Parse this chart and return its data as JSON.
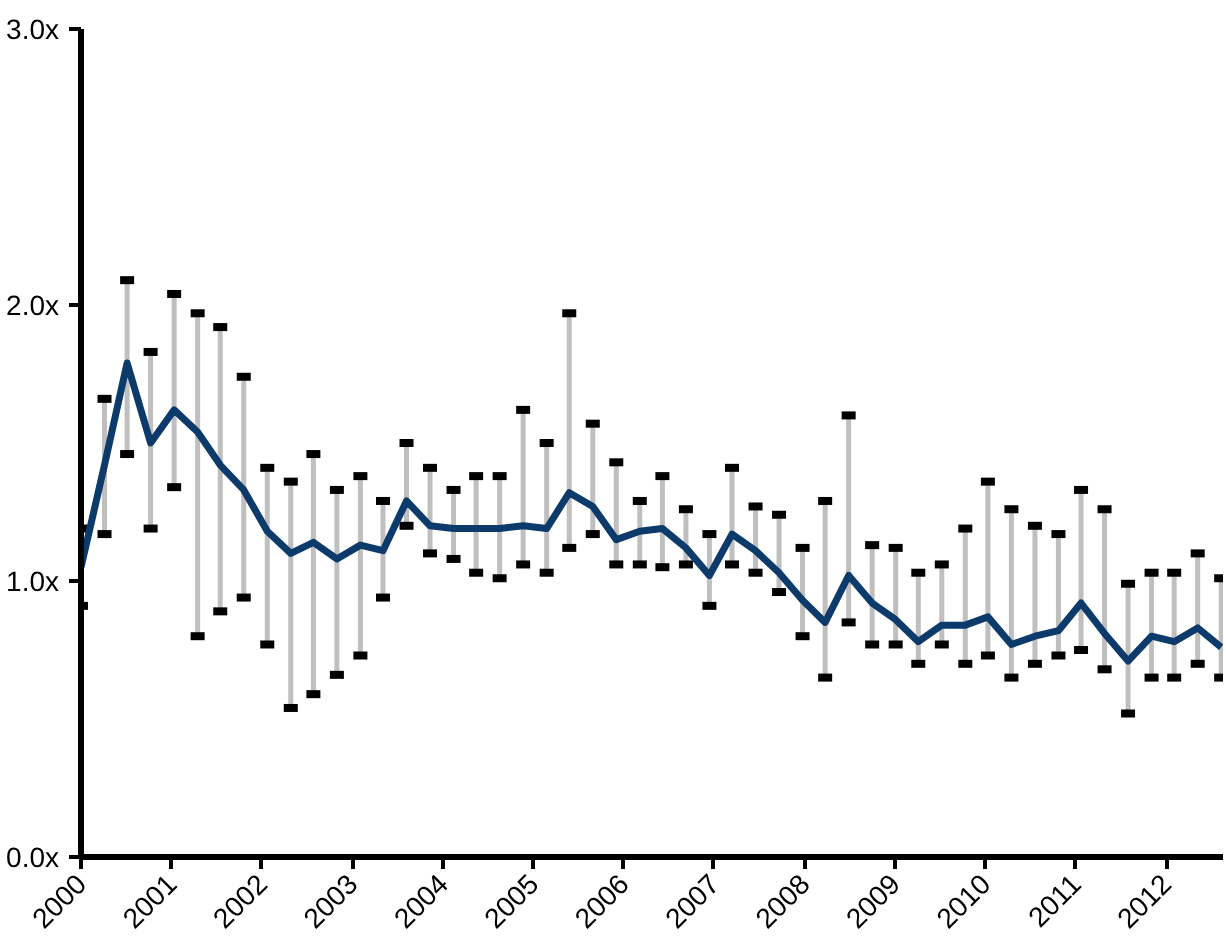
{
  "chart_data": {
    "type": "line",
    "x": [
      2000,
      2000.26,
      2000.51,
      2000.77,
      2001.03,
      2001.29,
      2001.54,
      2001.8,
      2002.06,
      2002.32,
      2002.57,
      2002.83,
      2003.09,
      2003.34,
      2003.6,
      2003.86,
      2004.12,
      2004.37,
      2004.63,
      2004.89,
      2005.15,
      2005.4,
      2005.66,
      2005.92,
      2006.18,
      2006.43,
      2006.69,
      2006.95,
      2007.2,
      2007.46,
      2007.72,
      2007.98,
      2008.23,
      2008.49,
      2008.75,
      2009.01,
      2009.26,
      2009.52,
      2009.78,
      2010.03,
      2010.29,
      2010.55,
      2010.81,
      2011.06,
      2011.32,
      2011.58,
      2011.84,
      2012.09,
      2012.35,
      2012.61
    ],
    "series": [
      {
        "color": "#0b3a6b",
        "values": [
          1.05,
          1.42,
          1.79,
          1.5,
          1.62,
          1.54,
          1.42,
          1.33,
          1.18,
          1.1,
          1.14,
          1.08,
          1.13,
          1.11,
          1.29,
          1.2,
          1.19,
          1.19,
          1.19,
          1.2,
          1.19,
          1.32,
          1.27,
          1.15,
          1.18,
          1.19,
          1.12,
          1.02,
          1.17,
          1.11,
          1.03,
          0.93,
          0.85,
          1.02,
          0.92,
          0.86,
          0.78,
          0.84,
          0.84,
          0.87,
          0.77,
          0.8,
          0.82,
          0.92,
          0.81,
          0.71,
          0.8,
          0.78,
          0.83,
          0.76
        ],
        "errors": [
          [
            0.91,
            1.19
          ],
          [
            1.17,
            1.66
          ],
          [
            1.46,
            2.09
          ],
          [
            1.19,
            1.83
          ],
          [
            1.34,
            2.04
          ],
          [
            0.8,
            1.97
          ],
          [
            0.89,
            1.92
          ],
          [
            0.94,
            1.74
          ],
          [
            0.77,
            1.41
          ],
          [
            0.54,
            1.36
          ],
          [
            0.59,
            1.46
          ],
          [
            0.66,
            1.33
          ],
          [
            0.73,
            1.38
          ],
          [
            0.94,
            1.29
          ],
          [
            1.2,
            1.5
          ],
          [
            1.1,
            1.41
          ],
          [
            1.08,
            1.33
          ],
          [
            1.03,
            1.38
          ],
          [
            1.01,
            1.38
          ],
          [
            1.06,
            1.62
          ],
          [
            1.03,
            1.5
          ],
          [
            1.12,
            1.97
          ],
          [
            1.17,
            1.57
          ],
          [
            1.06,
            1.43
          ],
          [
            1.06,
            1.29
          ],
          [
            1.05,
            1.38
          ],
          [
            1.06,
            1.26
          ],
          [
            0.91,
            1.17
          ],
          [
            1.06,
            1.41
          ],
          [
            1.03,
            1.27
          ],
          [
            0.96,
            1.24
          ],
          [
            0.8,
            1.12
          ],
          [
            0.65,
            1.29
          ],
          [
            0.85,
            1.6
          ],
          [
            0.77,
            1.13
          ],
          [
            0.77,
            1.12
          ],
          [
            0.7,
            1.03
          ],
          [
            0.77,
            1.06
          ],
          [
            0.7,
            1.19
          ],
          [
            0.73,
            1.36
          ],
          [
            0.65,
            1.26
          ],
          [
            0.7,
            1.2
          ],
          [
            0.73,
            1.17
          ],
          [
            0.75,
            1.33
          ],
          [
            0.68,
            1.26
          ],
          [
            0.52,
            0.99
          ],
          [
            0.65,
            1.03
          ],
          [
            0.65,
            1.03
          ],
          [
            0.7,
            1.1
          ],
          [
            0.65,
            1.01
          ]
        ]
      }
    ],
    "xlim": [
      2000,
      2012.63
    ],
    "xticks": [
      2000,
      2001,
      2002,
      2003,
      2004,
      2005,
      2006,
      2007,
      2008,
      2009,
      2010,
      2011,
      2012
    ],
    "ylim": [
      0,
      3
    ],
    "yticks": [
      {
        "value": 0,
        "label": "0.0x"
      },
      {
        "value": 1,
        "label": "1.0x"
      },
      {
        "value": 2,
        "label": "2.0x"
      },
      {
        "value": 3,
        "label": "3.0x"
      }
    ],
    "grid": false,
    "marker": "none",
    "line_style": "solid"
  }
}
